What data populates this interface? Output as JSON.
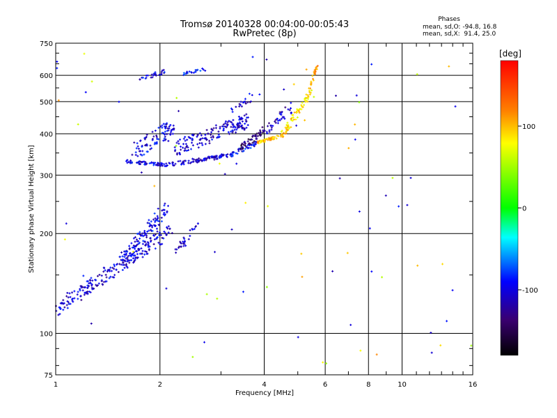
{
  "chart_data": {
    "type": "scatter",
    "title": "Tromsø 20140328 00:04:00-00:05:43",
    "subtitle": "RwPretec (8p)",
    "xlabel": "Frequency [MHz]",
    "ylabel": "Stationary phase Virtual Height [km]",
    "x_scale": "log",
    "y_scale": "log",
    "xlim": [
      1,
      16
    ],
    "ylim": [
      75,
      750
    ],
    "x_ticks": [
      1,
      2,
      4,
      6,
      8,
      10,
      16
    ],
    "y_ticks": [
      75,
      100,
      200,
      300,
      400,
      500,
      600,
      750
    ],
    "grid": true,
    "phases_box": {
      "title": "Phases",
      "line1": "mean, sd,O: -94.8, 16.8",
      "line2": "mean, sd,X:  91.4, 25.0"
    },
    "colorbar": {
      "label": "[deg]",
      "ticks": [
        100,
        0,
        -100
      ],
      "range": [
        -180,
        180
      ],
      "colors_top_to_bottom": [
        "#ff0000",
        "#ffff00",
        "#00ff00",
        "#00ffff",
        "#0000ff",
        "#000000"
      ]
    },
    "series": [
      {
        "traces": [
          {
            "x0": 1.0,
            "x1": 2.15,
            "y0": 118,
            "y1": 205,
            "phase": -105,
            "count": 230,
            "spread": 0.1
          },
          {
            "x0": 1.55,
            "x1": 2.1,
            "y0": 165,
            "y1": 240,
            "phase": -100,
            "count": 120,
            "spread": 0.1
          },
          {
            "x0": 2.2,
            "x1": 2.6,
            "y0": 175,
            "y1": 215,
            "phase": -110,
            "count": 30,
            "spread": 0.06
          },
          {
            "x0": 1.6,
            "x1": 2.1,
            "y0": 330,
            "y1": 322,
            "phase": -100,
            "count": 60,
            "spread": 0.02
          },
          {
            "x0": 2.1,
            "x1": 3.2,
            "y0": 322,
            "y1": 345,
            "phase": -105,
            "count": 90,
            "spread": 0.03
          },
          {
            "x0": 3.2,
            "x1": 3.8,
            "y0": 345,
            "y1": 375,
            "phase": -95,
            "count": 40,
            "spread": 0.03
          },
          {
            "x0": 1.65,
            "x1": 2.2,
            "y0": 350,
            "y1": 420,
            "phase": -100,
            "count": 90,
            "spread": 0.12
          },
          {
            "x0": 2.2,
            "x1": 3.6,
            "y0": 360,
            "y1": 440,
            "phase": -105,
            "count": 160,
            "spread": 0.1
          },
          {
            "x0": 3.4,
            "x1": 4.0,
            "y0": 360,
            "y1": 410,
            "phase": -140,
            "count": 50,
            "spread": 0.05
          },
          {
            "x0": 3.8,
            "x1": 4.5,
            "y0": 375,
            "y1": 395,
            "phase": 100,
            "count": 50,
            "spread": 0.02
          },
          {
            "x0": 4.5,
            "x1": 5.5,
            "y0": 395,
            "y1": 540,
            "phase": 90,
            "count": 70,
            "spread": 0.05
          },
          {
            "x0": 5.4,
            "x1": 5.7,
            "y0": 540,
            "y1": 650,
            "phase": 110,
            "count": 25,
            "spread": 0.03
          },
          {
            "x0": 4.0,
            "x1": 4.8,
            "y0": 410,
            "y1": 480,
            "phase": -110,
            "count": 40,
            "spread": 0.07
          },
          {
            "x0": 3.2,
            "x1": 3.9,
            "y0": 470,
            "y1": 530,
            "phase": -110,
            "count": 20,
            "spread": 0.04
          },
          {
            "x0": 1.75,
            "x1": 2.1,
            "y0": 585,
            "y1": 620,
            "phase": -100,
            "count": 25,
            "spread": 0.03
          },
          {
            "x0": 2.3,
            "x1": 2.7,
            "y0": 605,
            "y1": 625,
            "phase": -90,
            "count": 20,
            "spread": 0.02
          },
          {
            "x0": 1.0,
            "x1": 16.0,
            "y0": 80,
            "y1": 700,
            "phase": 60,
            "count": 80,
            "spread": 0.6,
            "random": true
          }
        ]
      }
    ]
  }
}
